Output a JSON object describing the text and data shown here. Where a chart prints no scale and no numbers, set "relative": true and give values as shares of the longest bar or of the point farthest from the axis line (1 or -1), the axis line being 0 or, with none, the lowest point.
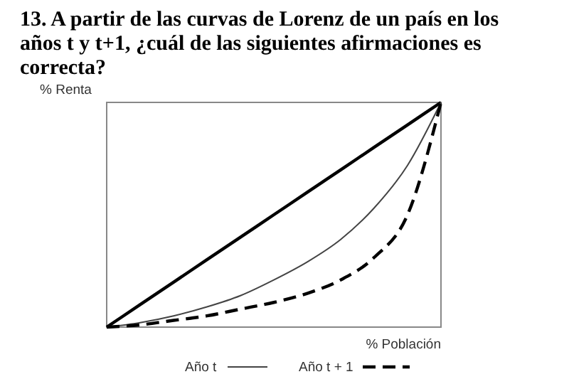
{
  "chart_data": {
    "type": "line",
    "title": "13. A partir de las curvas de Lorenz de un país en los años t y t+1, ¿cuál de las siguientes afirmaciones es correcta?",
    "xlabel": "% Población",
    "ylabel": "% Renta",
    "relative": true,
    "legend": "bottom",
    "marker": "none",
    "categories": [
      null,
      null,
      null,
      null,
      null,
      null,
      null,
      null,
      null,
      null,
      null
    ],
    "series": [
      {
        "color": "#000000",
        "values": [
          0,
          0.1,
          0.2,
          0.3,
          0.4,
          0.5,
          0.6,
          0.7,
          0.8,
          0.9,
          1
        ]
      },
      {
        "name": "Año t",
        "color": "#444444",
        "values": [
          0,
          0.02,
          0.05,
          0.09,
          0.14,
          0.21,
          0.29,
          0.39,
          0.53,
          0.72,
          1
        ]
      },
      {
        "name": "Año t + 1",
        "color": "#000000",
        "line_style": "dashed",
        "values": [
          0,
          0.01,
          0.03,
          0.05,
          0.08,
          0.11,
          0.15,
          0.21,
          0.31,
          0.5,
          1
        ]
      }
    ]
  }
}
